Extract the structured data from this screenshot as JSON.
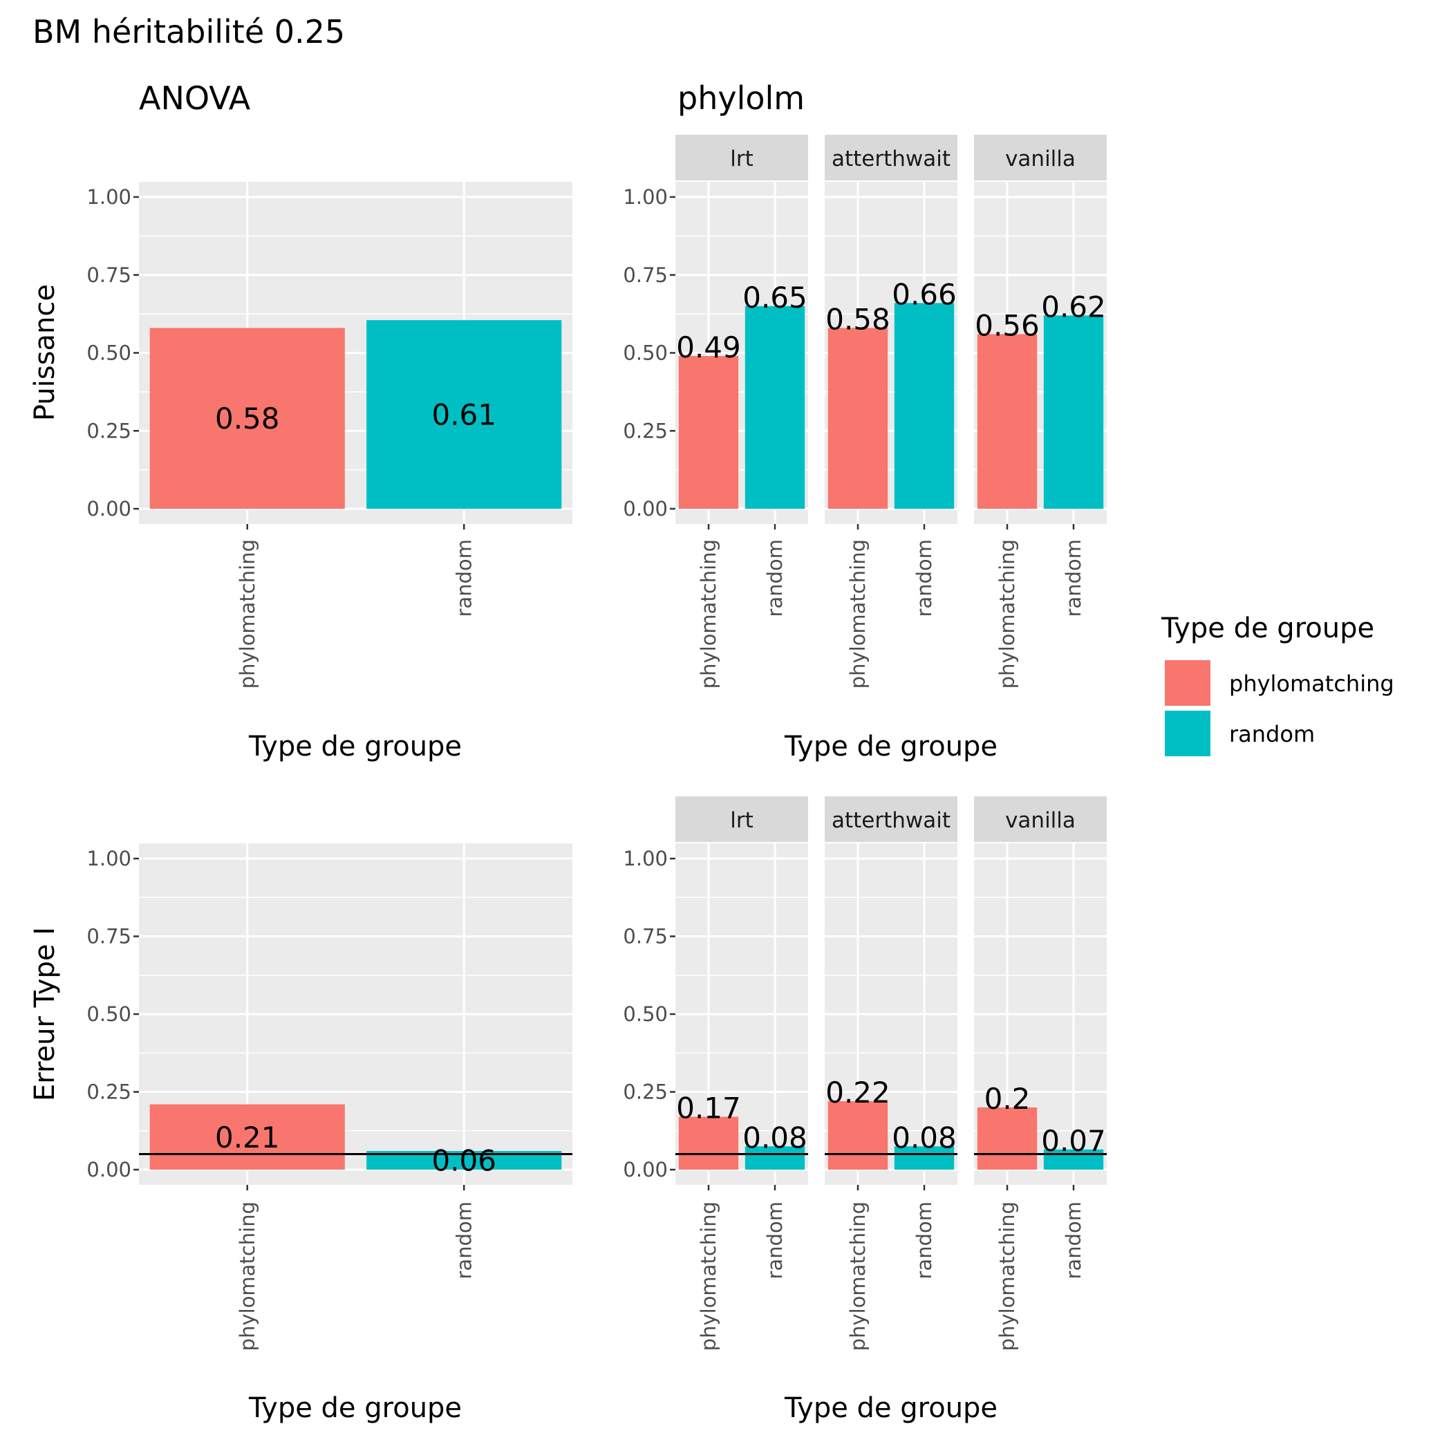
{
  "title": "BM héritabilité  0.25",
  "colors": {
    "phylomatching": "#F8766D",
    "random": "#00BFC4",
    "panel_bg": "#EBEBEB",
    "strip_bg": "#D9D9D9",
    "grid": "#FFFFFF",
    "tick_text": "#4D4D4D",
    "reference_line": "#000000"
  },
  "legend": {
    "title": "Type de groupe",
    "items": [
      {
        "label": "phylomatching",
        "color": "#F8766D"
      },
      {
        "label": "random",
        "color": "#00BFC4"
      }
    ]
  },
  "columns": [
    {
      "subtitle": "ANOVA"
    },
    {
      "subtitle": "phylolm"
    }
  ],
  "rows": [
    {
      "ylabel": "Puissance"
    },
    {
      "ylabel": "Erreur Type I"
    }
  ],
  "chart_data": [
    {
      "type": "bar",
      "row": "Puissance",
      "method": "ANOVA",
      "ylabel": "Puissance",
      "xlabel": "Type de groupe",
      "categories": [
        "phylomatching",
        "random"
      ],
      "ylim": [
        0,
        1
      ],
      "yticks": [
        "0.00",
        "0.25",
        "0.50",
        "0.75",
        "1.00"
      ],
      "facets": [
        {
          "name": "",
          "values": [
            0.58,
            0.605
          ],
          "labels": [
            "0.58",
            "0.61"
          ]
        }
      ],
      "label_position": "middle",
      "reference_line": null
    },
    {
      "type": "bar",
      "row": "Puissance",
      "method": "phylolm",
      "xlabel": "Type de groupe",
      "categories": [
        "phylomatching",
        "random"
      ],
      "ylim": [
        0,
        1
      ],
      "yticks": [
        "0.00",
        "0.25",
        "0.50",
        "0.75",
        "1.00"
      ],
      "facets": [
        {
          "name": "lrt",
          "values": [
            0.49,
            0.65
          ],
          "labels": [
            "0.49",
            "0.65"
          ]
        },
        {
          "name": "atterthwait",
          "values": [
            0.58,
            0.66
          ],
          "labels": [
            "0.58",
            "0.66"
          ]
        },
        {
          "name": "vanilla",
          "values": [
            0.56,
            0.62
          ],
          "labels": [
            "0.56",
            "0.62"
          ]
        }
      ],
      "label_position": "top",
      "reference_line": null
    },
    {
      "type": "bar",
      "row": "Erreur Type I",
      "method": "ANOVA",
      "ylabel": "Erreur Type I",
      "xlabel": "Type de groupe",
      "categories": [
        "phylomatching",
        "random"
      ],
      "ylim": [
        0,
        1
      ],
      "yticks": [
        "0.00",
        "0.25",
        "0.50",
        "0.75",
        "1.00"
      ],
      "facets": [
        {
          "name": "",
          "values": [
            0.21,
            0.06
          ],
          "labels": [
            "0.21",
            "0.06"
          ]
        }
      ],
      "label_position": "middle",
      "reference_line": 0.05
    },
    {
      "type": "bar",
      "row": "Erreur Type I",
      "method": "phylolm",
      "xlabel": "Type de groupe",
      "categories": [
        "phylomatching",
        "random"
      ],
      "ylim": [
        0,
        1
      ],
      "yticks": [
        "0.00",
        "0.25",
        "0.50",
        "0.75",
        "1.00"
      ],
      "facets": [
        {
          "name": "lrt",
          "values": [
            0.17,
            0.075
          ],
          "labels": [
            "0.17",
            "0.08"
          ]
        },
        {
          "name": "atterthwait",
          "values": [
            0.22,
            0.075
          ],
          "labels": [
            "0.22",
            "0.08"
          ]
        },
        {
          "name": "vanilla",
          "values": [
            0.2,
            0.065
          ],
          "labels": [
            "0.2",
            "0.07"
          ]
        }
      ],
      "label_position": "top",
      "reference_line": 0.05
    }
  ]
}
